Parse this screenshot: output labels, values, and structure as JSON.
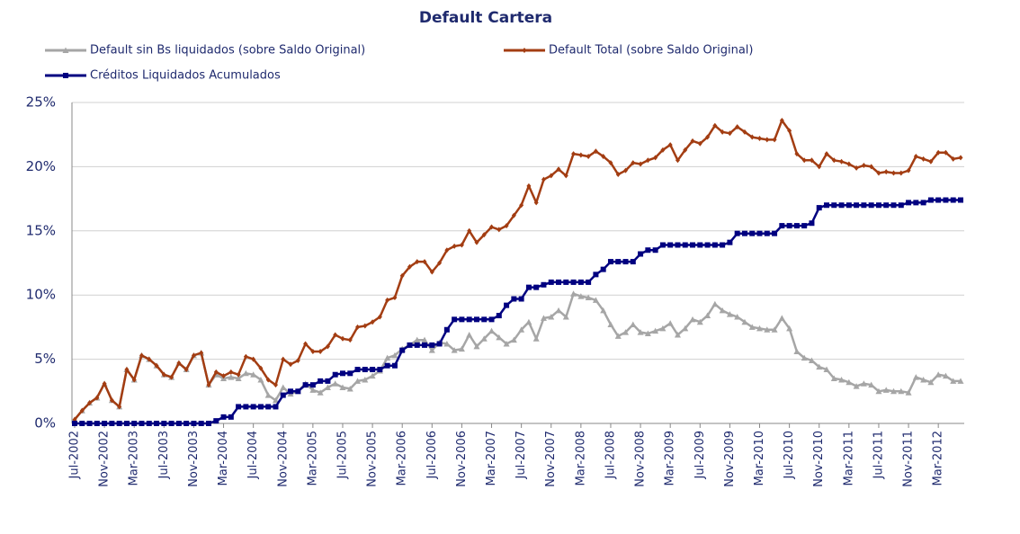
{
  "chart_data": {
    "type": "line",
    "title": "Default Cartera",
    "categories": [
      "Jul-2002",
      null,
      null,
      null,
      "Nov-2002",
      null,
      null,
      null,
      "Mar-2003",
      null,
      null,
      null,
      "Jul-2003",
      null,
      null,
      null,
      "Nov-2003",
      null,
      null,
      null,
      "Mar-2004",
      null,
      null,
      null,
      "Jul-2004",
      null,
      null,
      null,
      "Nov-2004",
      null,
      null,
      null,
      "Mar-2005",
      null,
      null,
      null,
      "Jul-2005",
      null,
      null,
      null,
      "Nov-2005",
      null,
      null,
      null,
      "Mar-2006",
      null,
      null,
      null,
      "Jul-2006",
      null,
      null,
      null,
      "Nov-2006",
      null,
      null,
      null,
      "Mar-2007",
      null,
      null,
      null,
      "Jul-2007",
      null,
      null,
      null,
      "Nov-2007",
      null,
      null,
      null,
      "Mar-2008",
      null,
      null,
      null,
      "Jul-2008",
      null,
      null,
      null,
      "Nov-2008",
      null,
      null,
      null,
      "Mar-2009",
      null,
      null,
      null,
      "Jul-2009",
      null,
      null,
      null,
      "Nov-2009",
      null,
      null,
      null,
      "Mar-2010",
      null,
      null,
      null,
      "Jul-2010",
      null,
      null,
      null,
      "Nov-2010",
      null,
      null,
      null,
      "Mar-2011",
      null,
      null,
      null,
      "Jul-2011",
      null,
      null,
      null,
      "Nov-2011",
      null,
      null,
      null,
      "Mar-2012",
      null,
      null,
      null
    ],
    "series": [
      {
        "name": "Default sin Bs liquidados (sobre Saldo Original)",
        "color": "#a6a6a6",
        "marker": "triangle",
        "values": [
          0.3,
          1.0,
          1.6,
          2.0,
          3.1,
          1.8,
          1.3,
          4.2,
          3.4,
          5.3,
          5.0,
          4.5,
          3.8,
          3.6,
          4.7,
          4.2,
          5.3,
          5.5,
          3.0,
          3.8,
          3.5,
          3.6,
          3.5,
          3.9,
          3.8,
          3.4,
          2.2,
          1.8,
          2.8,
          2.3,
          2.5,
          3.1,
          2.6,
          2.4,
          2.8,
          3.1,
          2.8,
          2.7,
          3.3,
          3.4,
          3.7,
          4.1,
          5.1,
          5.3,
          5.8,
          6.1,
          6.5,
          6.5,
          5.7,
          6.3,
          6.2,
          5.7,
          5.8,
          6.9,
          6.0,
          6.6,
          7.2,
          6.7,
          6.2,
          6.5,
          7.3,
          7.9,
          6.6,
          8.2,
          8.3,
          8.8,
          8.3,
          10.1,
          9.9,
          9.8,
          9.6,
          8.8,
          7.7,
          6.8,
          7.1,
          7.7,
          7.1,
          7.0,
          7.2,
          7.4,
          7.8,
          6.9,
          7.4,
          8.1,
          7.9,
          8.4,
          9.3,
          8.8,
          8.5,
          8.3,
          7.9,
          7.5,
          7.4,
          7.3,
          7.3,
          8.2,
          7.4,
          5.6,
          5.1,
          4.9,
          4.4,
          4.2,
          3.5,
          3.4,
          3.2,
          2.9,
          3.1,
          3.0,
          2.5,
          2.6,
          2.5,
          2.5,
          2.4,
          3.6,
          3.4,
          3.2,
          3.8,
          3.7,
          3.3,
          3.3
        ]
      },
      {
        "name": "Default Total (sobre Saldo Original)",
        "color": "#a33d12",
        "marker": "diamond",
        "values": [
          0.3,
          1.0,
          1.6,
          2.0,
          3.1,
          1.8,
          1.3,
          4.2,
          3.4,
          5.3,
          5.0,
          4.5,
          3.8,
          3.6,
          4.7,
          4.2,
          5.3,
          5.5,
          3.0,
          4.0,
          3.7,
          4.0,
          3.8,
          5.2,
          5.0,
          4.3,
          3.4,
          3.0,
          5.0,
          4.6,
          4.9,
          6.2,
          5.6,
          5.6,
          6.0,
          6.9,
          6.6,
          6.5,
          7.5,
          7.6,
          7.9,
          8.3,
          9.6,
          9.8,
          11.5,
          12.2,
          12.6,
          12.6,
          11.8,
          12.5,
          13.5,
          13.8,
          13.9,
          15.0,
          14.1,
          14.7,
          15.3,
          15.1,
          15.4,
          16.2,
          17.0,
          18.5,
          17.2,
          19.0,
          19.3,
          19.8,
          19.3,
          21.0,
          20.9,
          20.8,
          21.2,
          20.8,
          20.3,
          19.4,
          19.7,
          20.3,
          20.2,
          20.5,
          20.7,
          21.3,
          21.7,
          20.5,
          21.3,
          22.0,
          21.8,
          22.3,
          23.2,
          22.7,
          22.6,
          23.1,
          22.7,
          22.3,
          22.2,
          22.1,
          22.1,
          23.6,
          22.8,
          21.0,
          20.5,
          20.5,
          20.0,
          21.0,
          20.5,
          20.4,
          20.2,
          19.9,
          20.1,
          20.0,
          19.5,
          19.6,
          19.5,
          19.5,
          19.7,
          20.8,
          20.6,
          20.4,
          21.1,
          21.1,
          20.6,
          20.7
        ]
      },
      {
        "name": "Créditos Liquidados Acumulados",
        "color": "#000080",
        "marker": "square",
        "values": [
          0,
          0,
          0,
          0,
          0,
          0,
          0,
          0,
          0,
          0,
          0,
          0,
          0,
          0,
          0,
          0,
          0,
          0,
          0,
          0.2,
          0.5,
          0.5,
          1.3,
          1.3,
          1.3,
          1.3,
          1.3,
          1.3,
          2.2,
          2.5,
          2.5,
          3.0,
          3.0,
          3.3,
          3.3,
          3.8,
          3.9,
          3.9,
          4.2,
          4.2,
          4.2,
          4.2,
          4.5,
          4.5,
          5.7,
          6.1,
          6.1,
          6.1,
          6.1,
          6.2,
          7.3,
          8.1,
          8.1,
          8.1,
          8.1,
          8.1,
          8.1,
          8.4,
          9.2,
          9.7,
          9.7,
          10.6,
          10.6,
          10.8,
          11.0,
          11.0,
          11.0,
          11.0,
          11.0,
          11.0,
          11.6,
          12.0,
          12.6,
          12.6,
          12.6,
          12.6,
          13.2,
          13.5,
          13.5,
          13.9,
          13.9,
          13.9,
          13.9,
          13.9,
          13.9,
          13.9,
          13.9,
          13.9,
          14.1,
          14.8,
          14.8,
          14.8,
          14.8,
          14.8,
          14.8,
          15.4,
          15.4,
          15.4,
          15.4,
          15.6,
          16.8,
          17.0,
          17.0,
          17.0,
          17.0,
          17.0,
          17.0,
          17.0,
          17.0,
          17.0,
          17.0,
          17.0,
          17.2,
          17.2,
          17.2,
          17.4,
          17.4,
          17.4,
          17.4,
          17.4
        ]
      }
    ],
    "ylim": [
      0,
      25
    ],
    "yticks": [
      {
        "value": 0,
        "label": "0%"
      },
      {
        "value": 5,
        "label": "5%"
      },
      {
        "value": 10,
        "label": "10%"
      },
      {
        "value": 15,
        "label": "15%"
      },
      {
        "value": 20,
        "label": "20%"
      },
      {
        "value": 25,
        "label": "25%"
      }
    ],
    "grid": true
  }
}
